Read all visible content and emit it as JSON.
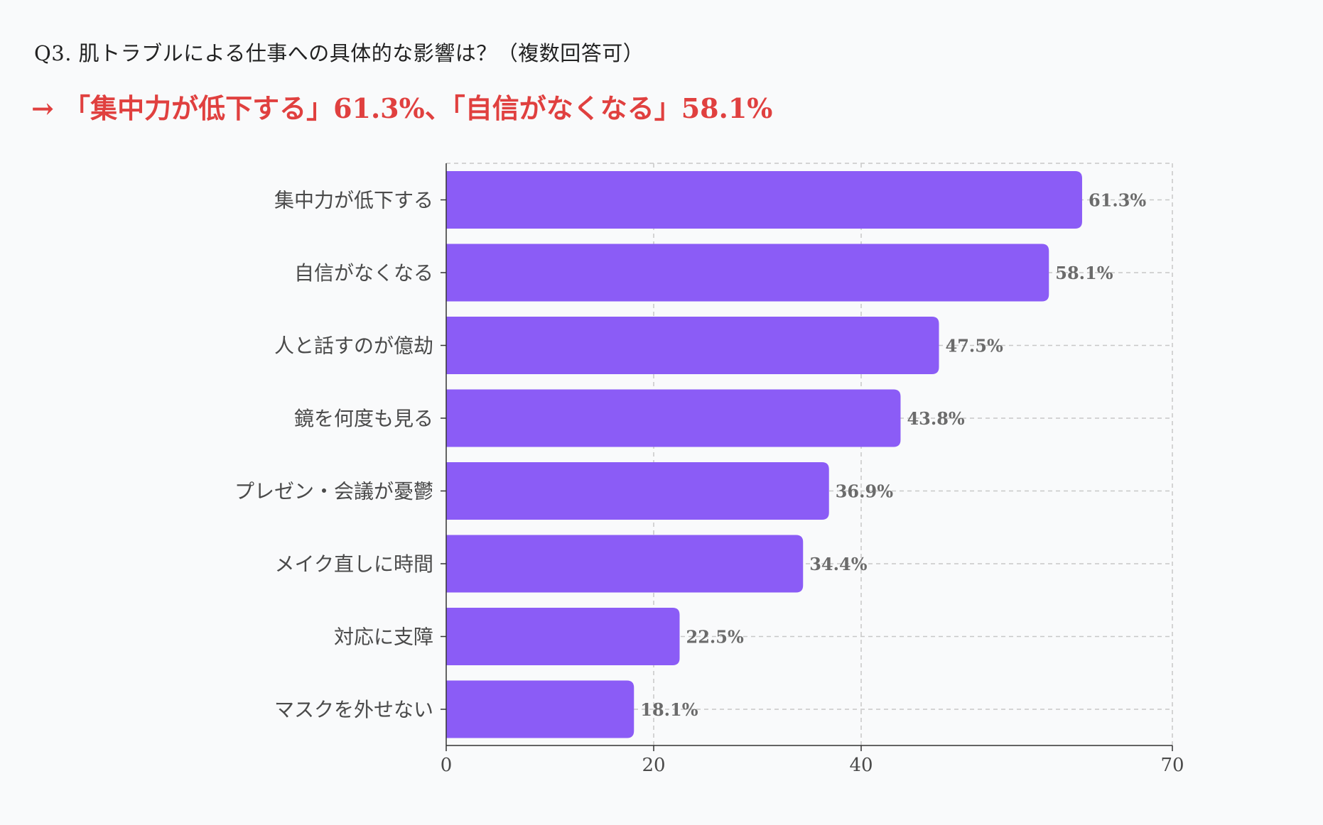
{
  "chart_data": {
    "type": "bar",
    "orientation": "horizontal",
    "title": "Q3. 肌トラブルによる仕事への具体的な影響は？（複数回答可）",
    "subtitle": "→ 「集中力が低下する」61.3%、「自信がなくなる」58.1%",
    "categories": [
      "集中力が低下する",
      "自信がなくなる",
      "人と話すのが億劫",
      "鏡を何度も見る",
      "プレゼン・会議が憂鬱",
      "メイク直しに時間",
      "対応に支障",
      "マスクを外せない"
    ],
    "values": [
      61.3,
      58.1,
      47.5,
      43.8,
      36.9,
      34.4,
      22.5,
      18.1
    ],
    "value_labels": [
      "61.3%",
      "58.1%",
      "47.5%",
      "43.8%",
      "36.9%",
      "34.4%",
      "22.5%",
      "18.1%"
    ],
    "xlim": [
      0,
      70
    ],
    "xticks": [
      0,
      20,
      40,
      70
    ],
    "xtick_labels": [
      "0",
      "20",
      "40",
      "70"
    ],
    "xlabel": "",
    "ylabel": "",
    "grid": true,
    "bar_color": "#8b5cf6"
  },
  "colors": {
    "accent": "#e0403f",
    "bar": "#8b5cf6"
  }
}
